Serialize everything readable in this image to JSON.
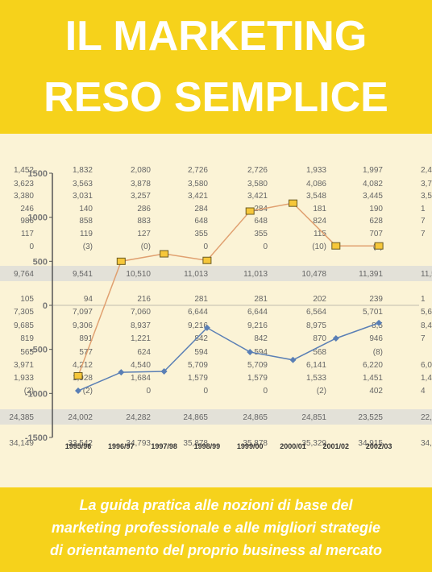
{
  "title_lines": [
    "IL MARKETING",
    "RESO SEMPLICE"
  ],
  "subtitle_lines": [
    "La guida pratica alle nozioni di base del",
    "marketing professionale e alle migliori strategie",
    "di orientamento del proprio business al mercato"
  ],
  "table": {
    "rows": [
      [
        "1,452",
        "1,832",
        "2,080",
        "2,726",
        "2,726",
        "1,933",
        "1,997",
        "2,4"
      ],
      [
        "3,623",
        "3,563",
        "3,878",
        "3,580",
        "3,580",
        "4,086",
        "4,082",
        "3,7"
      ],
      [
        "3,380",
        "3,031",
        "3,257",
        "3,421",
        "3,421",
        "3,548",
        "3,445",
        "3,5"
      ],
      [
        "246",
        "140",
        "286",
        "284",
        "284",
        "181",
        "190",
        "1"
      ],
      [
        "986",
        "858",
        "883",
        "648",
        "648",
        "824",
        "628",
        "7"
      ],
      [
        "117",
        "119",
        "127",
        "355",
        "355",
        "115",
        "707",
        "7"
      ],
      [
        "0",
        "(3)",
        "(0)",
        "0",
        "0",
        "(10)",
        "(0)",
        ""
      ],
      [
        "9,764",
        "9,541",
        "10,510",
        "11,013",
        "11,013",
        "10,478",
        "11,391",
        "11,5"
      ],
      [
        "105",
        "94",
        "216",
        "281",
        "281",
        "202",
        "239",
        "1"
      ],
      [
        "7,305",
        "7,097",
        "7,060",
        "6,644",
        "6,644",
        "6,564",
        "5,701",
        "5,6"
      ],
      [
        "9,685",
        "9,306",
        "8,937",
        "9,216",
        "9,216",
        "8,975",
        "8,5",
        "8,4"
      ],
      [
        "819",
        "891",
        "1,221",
        "842",
        "842",
        "870",
        "946",
        "7"
      ],
      [
        "565",
        "577",
        "624",
        "594",
        "594",
        "568",
        "(8)",
        ""
      ],
      [
        "3,971",
        "4,212",
        "4,540",
        "5,709",
        "5,709",
        "6,141",
        "6,220",
        "6,0"
      ],
      [
        "1,933",
        "1,928",
        "1,684",
        "1,579",
        "1,579",
        "1,533",
        "1,451",
        "1,4"
      ],
      [
        "(2)",
        "(2)",
        "0",
        "0",
        "0",
        "(2)",
        "402",
        "4"
      ],
      [
        "24,385",
        "24,002",
        "24,282",
        "24,865",
        "24,865",
        "24,851",
        "23,525",
        "22,8"
      ],
      [
        "34,149",
        "33,542",
        "34,793",
        "35,878",
        "35,878",
        "35,329",
        "34,915",
        "34,3"
      ]
    ]
  },
  "chart_data": {
    "type": "line",
    "categories": [
      "1995/96",
      "1996/97",
      "1997/98",
      "1998/99",
      "1999/00",
      "2000/01",
      "2001/02",
      "2002/03"
    ],
    "series": [
      {
        "color": "#e0a070",
        "marker": "square",
        "values": [
          -800,
          500,
          585,
          510,
          1070,
          1160,
          675,
          675
        ]
      },
      {
        "color": "#5a7fb5",
        "marker": "diamond",
        "values": [
          -970,
          -760,
          -750,
          -255,
          -530,
          -620,
          -375,
          -200
        ]
      }
    ],
    "ylim": [
      -1500,
      1500
    ],
    "yticks": [
      1500,
      1000,
      500,
      0,
      -500,
      -1000,
      -1500
    ]
  }
}
